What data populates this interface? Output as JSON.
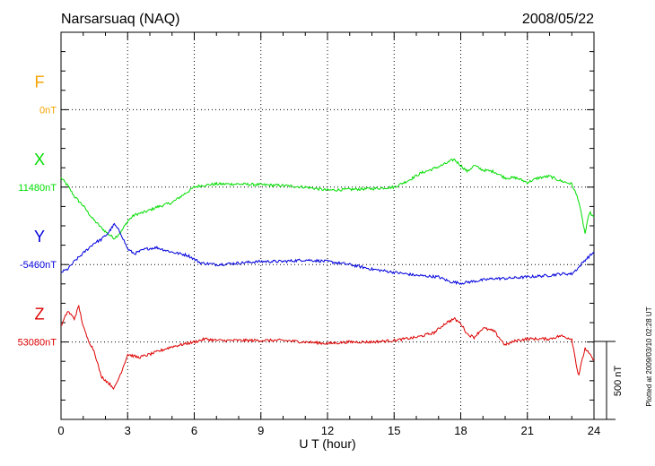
{
  "station": "Narsarsuaq (NAQ)",
  "date": "2008/05/22",
  "plotted_note": "Plotted at 2009/03/10 02:28 UT",
  "scale_bar_label": "500 nT",
  "chart_data": {
    "type": "line",
    "title": "Narsarsuaq (NAQ)",
    "xlabel": "U T (hour)",
    "ylabel": "",
    "xlim": [
      0,
      24
    ],
    "xticks": [
      "0",
      "3",
      "6",
      "9",
      "12",
      "15",
      "18",
      "21",
      "24"
    ],
    "grid": true,
    "scale_bar_nT": 500,
    "components": [
      {
        "name": "F",
        "baseline_label": "0nT",
        "color": "#f5a300",
        "baseline_row": 1,
        "values": []
      },
      {
        "name": "X",
        "baseline_label": "11480nT",
        "color": "#00dd00",
        "baseline_row": 2,
        "x": [
          0,
          0.3,
          0.6,
          1.0,
          1.4,
          1.8,
          2.1,
          2.4,
          2.7,
          3.0,
          3.3,
          3.8,
          4.3,
          5.0,
          5.7,
          6.0,
          6.3,
          7.0,
          8.0,
          9.0,
          10.0,
          11.0,
          12.0,
          13.0,
          14.0,
          15.0,
          15.6,
          16.2,
          16.8,
          17.3,
          17.7,
          18.0,
          18.3,
          18.6,
          19.0,
          19.5,
          20.0,
          20.5,
          21.0,
          21.5,
          22.0,
          22.5,
          23.0,
          23.3,
          23.6,
          23.8,
          24.0
        ],
        "values": [
          60,
          10,
          -60,
          -120,
          -200,
          -260,
          -300,
          -330,
          -290,
          -220,
          -180,
          -160,
          -130,
          -100,
          -30,
          0,
          10,
          20,
          20,
          15,
          10,
          0,
          -20,
          -15,
          -10,
          0,
          40,
          90,
          120,
          150,
          180,
          140,
          100,
          140,
          110,
          100,
          60,
          60,
          30,
          60,
          70,
          40,
          20,
          -80,
          -300,
          -160,
          -200
        ]
      },
      {
        "name": "Y",
        "baseline_label": "-5460nT",
        "color": "#0000dd",
        "baseline_row": 3,
        "x": [
          0,
          0.3,
          0.6,
          0.9,
          1.2,
          1.5,
          1.8,
          2.1,
          2.4,
          2.7,
          3.0,
          3.3,
          3.8,
          4.3,
          5.0,
          5.7,
          6.3,
          7.0,
          8.0,
          9.0,
          10.0,
          11.0,
          12.0,
          13.0,
          14.0,
          15.0,
          16.0,
          17.0,
          17.5,
          18.0,
          18.5,
          19.0,
          19.5,
          20.0,
          21.0,
          22.0,
          22.5,
          23.0,
          23.3,
          23.6,
          24.0
        ],
        "values": [
          -50,
          -30,
          20,
          60,
          100,
          140,
          160,
          200,
          260,
          200,
          100,
          70,
          100,
          110,
          80,
          60,
          10,
          0,
          10,
          20,
          20,
          30,
          20,
          0,
          -30,
          -50,
          -70,
          -80,
          -110,
          -120,
          -110,
          -100,
          -90,
          -90,
          -80,
          -70,
          -60,
          -60,
          -20,
          30,
          80
        ]
      },
      {
        "name": "Z",
        "baseline_label": "53080nT",
        "color": "#dd0000",
        "baseline_row": 4,
        "x": [
          0,
          0.3,
          0.6,
          0.8,
          1.0,
          1.2,
          1.5,
          1.8,
          2.1,
          2.4,
          2.7,
          3.0,
          3.5,
          4.0,
          5.0,
          6.0,
          6.5,
          7.0,
          8.0,
          9.0,
          10.0,
          11.0,
          12.0,
          13.0,
          14.0,
          15.0,
          16.0,
          16.8,
          17.3,
          17.7,
          18.0,
          18.3,
          18.6,
          19.0,
          19.5,
          20.0,
          20.5,
          21.0,
          21.5,
          22.0,
          22.5,
          23.0,
          23.3,
          23.6,
          24.0
        ],
        "values": [
          100,
          200,
          150,
          230,
          100,
          20,
          -60,
          -220,
          -260,
          -300,
          -200,
          -80,
          -100,
          -80,
          -30,
          0,
          20,
          10,
          10,
          10,
          10,
          0,
          -10,
          0,
          0,
          10,
          30,
          60,
          120,
          150,
          120,
          50,
          30,
          90,
          70,
          -20,
          10,
          20,
          20,
          20,
          40,
          20,
          -220,
          -40,
          -120
        ]
      }
    ]
  }
}
